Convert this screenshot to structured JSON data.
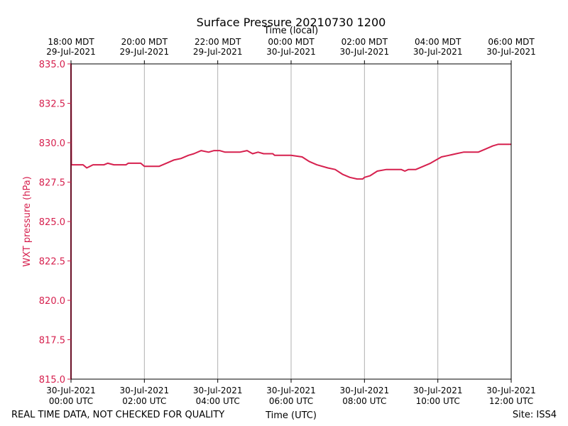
{
  "chart_data": {
    "type": "line",
    "title": "Surface Pressure 20210730 1200",
    "top_axis_label": "Time (local)",
    "xlabel": "Time (UTC)",
    "ylabel": "WXT pressure (hPa)",
    "footer_left": "REAL TIME DATA, NOT CHECKED FOR QUALITY",
    "footer_right": "Site: ISS4",
    "x_unit": "hours since 30-Jul-2021 00:00 UTC",
    "xlim": [
      0,
      12
    ],
    "ylim": [
      815.0,
      835.0
    ],
    "yticks": [
      815.0,
      817.5,
      820.0,
      822.5,
      825.0,
      827.5,
      830.0,
      832.5,
      835.0
    ],
    "yticks_labels": [
      "815.0",
      "817.5",
      "820.0",
      "822.5",
      "825.0",
      "827.5",
      "830.0",
      "832.5",
      "835.0"
    ],
    "bottom_ticks": [
      {
        "x": 0,
        "line1": "30-Jul-2021",
        "line2": "00:00 UTC"
      },
      {
        "x": 2,
        "line1": "30-Jul-2021",
        "line2": "02:00 UTC"
      },
      {
        "x": 4,
        "line1": "30-Jul-2021",
        "line2": "04:00 UTC"
      },
      {
        "x": 6,
        "line1": "30-Jul-2021",
        "line2": "06:00 UTC"
      },
      {
        "x": 8,
        "line1": "30-Jul-2021",
        "line2": "08:00 UTC"
      },
      {
        "x": 10,
        "line1": "30-Jul-2021",
        "line2": "10:00 UTC"
      },
      {
        "x": 12,
        "line1": "30-Jul-2021",
        "line2": "12:00 UTC"
      }
    ],
    "top_ticks": [
      {
        "x": 0,
        "line1": "18:00 MDT",
        "line2": "29-Jul-2021"
      },
      {
        "x": 2,
        "line1": "20:00 MDT",
        "line2": "29-Jul-2021"
      },
      {
        "x": 4,
        "line1": "22:00 MDT",
        "line2": "29-Jul-2021"
      },
      {
        "x": 6,
        "line1": "00:00 MDT",
        "line2": "30-Jul-2021"
      },
      {
        "x": 8,
        "line1": "02:00 MDT",
        "line2": "30-Jul-2021"
      },
      {
        "x": 10,
        "line1": "04:00 MDT",
        "line2": "30-Jul-2021"
      },
      {
        "x": 12,
        "line1": "06:00 MDT",
        "line2": "30-Jul-2021"
      }
    ],
    "grid": "vertical lines at major x ticks",
    "series": [
      {
        "color": "#d6204e",
        "points": [
          [
            0.0,
            815.0
          ],
          [
            0.0,
            835.0
          ],
          [
            0.01,
            828.6
          ],
          [
            0.33,
            828.6
          ],
          [
            0.43,
            828.4
          ],
          [
            0.6,
            828.6
          ],
          [
            0.9,
            828.6
          ],
          [
            1.0,
            828.7
          ],
          [
            1.17,
            828.6
          ],
          [
            1.5,
            828.6
          ],
          [
            1.56,
            828.7
          ],
          [
            1.9,
            828.7
          ],
          [
            2.0,
            828.5
          ],
          [
            2.4,
            828.5
          ],
          [
            2.6,
            828.7
          ],
          [
            2.8,
            828.9
          ],
          [
            3.0,
            829.0
          ],
          [
            3.2,
            829.2
          ],
          [
            3.35,
            829.3
          ],
          [
            3.55,
            829.5
          ],
          [
            3.75,
            829.4
          ],
          [
            3.9,
            829.5
          ],
          [
            4.05,
            829.5
          ],
          [
            4.2,
            829.4
          ],
          [
            4.6,
            829.4
          ],
          [
            4.8,
            829.5
          ],
          [
            4.95,
            829.3
          ],
          [
            5.1,
            829.4
          ],
          [
            5.25,
            829.3
          ],
          [
            5.5,
            829.3
          ],
          [
            5.55,
            829.2
          ],
          [
            6.0,
            829.2
          ],
          [
            6.3,
            829.1
          ],
          [
            6.5,
            828.8
          ],
          [
            6.7,
            828.6
          ],
          [
            7.0,
            828.4
          ],
          [
            7.2,
            828.3
          ],
          [
            7.4,
            828.0
          ],
          [
            7.6,
            827.8
          ],
          [
            7.8,
            827.7
          ],
          [
            7.95,
            827.7
          ],
          [
            8.0,
            827.8
          ],
          [
            8.15,
            827.9
          ],
          [
            8.35,
            828.2
          ],
          [
            8.6,
            828.3
          ],
          [
            9.0,
            828.3
          ],
          [
            9.1,
            828.2
          ],
          [
            9.2,
            828.3
          ],
          [
            9.4,
            828.3
          ],
          [
            9.6,
            828.5
          ],
          [
            9.8,
            828.7
          ],
          [
            9.95,
            828.9
          ],
          [
            10.1,
            829.1
          ],
          [
            10.3,
            829.2
          ],
          [
            10.5,
            829.3
          ],
          [
            10.7,
            829.4
          ],
          [
            11.1,
            829.4
          ],
          [
            11.3,
            829.6
          ],
          [
            11.5,
            829.8
          ],
          [
            11.65,
            829.9
          ],
          [
            12.0,
            829.9
          ]
        ]
      }
    ]
  }
}
